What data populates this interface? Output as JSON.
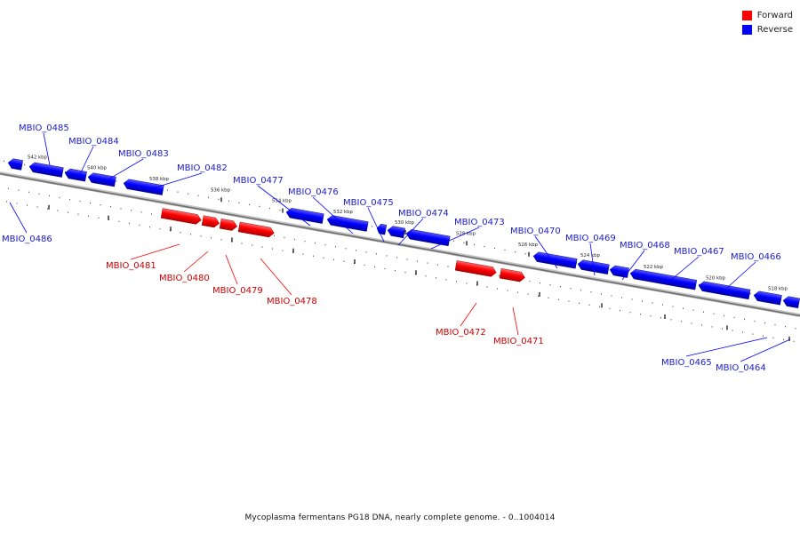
{
  "legend": [
    {
      "label": "Forward",
      "color": "#ff0000"
    },
    {
      "label": "Reverse",
      "color": "#0000ff"
    }
  ],
  "caption": "Mycoplasma fermentans PG18 DNA, nearly complete genome. - 0..1004014",
  "colors": {
    "forward": "#ff0000",
    "reverse": "#0000ff",
    "backbone": "#888888"
  },
  "ticks": [
    "542 kbp",
    "540 kbp",
    "538 kbp",
    "536 kbp",
    "534 kbp",
    "532 kbp",
    "530 kbp",
    "528 kbp",
    "526 kbp",
    "524 kbp",
    "522 kbp",
    "520 kbp",
    "518 kbp"
  ],
  "genes": [
    {
      "label": "MBIO_0486",
      "strand": "reverse"
    },
    {
      "label": "MBIO_0485",
      "strand": "reverse"
    },
    {
      "label": "MBIO_0484",
      "strand": "reverse"
    },
    {
      "label": "MBIO_0483",
      "strand": "reverse"
    },
    {
      "label": "MBIO_0482",
      "strand": "reverse"
    },
    {
      "label": "MBIO_0481",
      "strand": "forward"
    },
    {
      "label": "MBIO_0480",
      "strand": "forward"
    },
    {
      "label": "MBIO_0479",
      "strand": "forward"
    },
    {
      "label": "MBIO_0478",
      "strand": "forward"
    },
    {
      "label": "MBIO_0477",
      "strand": "reverse"
    },
    {
      "label": "MBIO_0476",
      "strand": "reverse"
    },
    {
      "label": "MBIO_0475",
      "strand": "reverse"
    },
    {
      "label": "MBIO_0474",
      "strand": "reverse"
    },
    {
      "label": "MBIO_0473",
      "strand": "reverse"
    },
    {
      "label": "MBIO_0472",
      "strand": "forward"
    },
    {
      "label": "MBIO_0471",
      "strand": "forward"
    },
    {
      "label": "MBIO_0470",
      "strand": "reverse"
    },
    {
      "label": "MBIO_0469",
      "strand": "reverse"
    },
    {
      "label": "MBIO_0468",
      "strand": "reverse"
    },
    {
      "label": "MBIO_0467",
      "strand": "reverse"
    },
    {
      "label": "MBIO_0466",
      "strand": "reverse"
    },
    {
      "label": "MBIO_0465",
      "strand": "reverse"
    },
    {
      "label": "MBIO_0464",
      "strand": "reverse"
    }
  ]
}
